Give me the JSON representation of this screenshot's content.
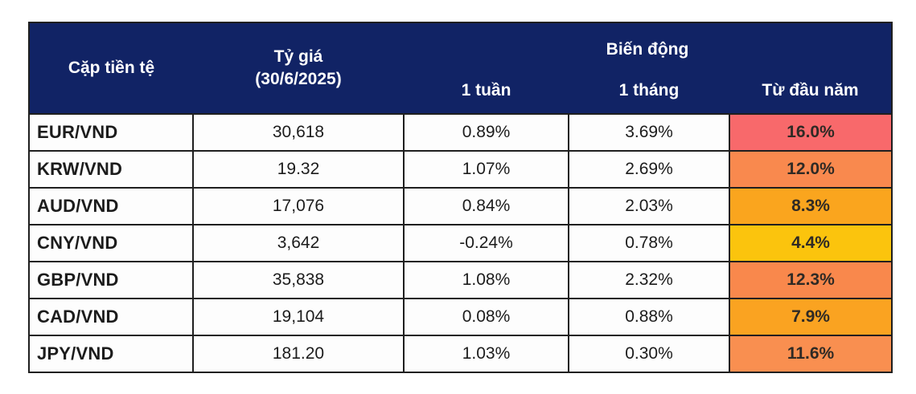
{
  "chart_data": {
    "type": "table",
    "columns": [
      "Cặp tiền tệ",
      "Tỷ giá (30/6/2025)",
      "1 tuần",
      "1 tháng",
      "Từ đầu năm"
    ],
    "column_groups": [
      {
        "label": "Biến động",
        "spans": [
          "1 tuần",
          "1 tháng",
          "Từ đầu năm"
        ]
      }
    ],
    "rows": [
      {
        "pair": "EUR/VND",
        "rate": 30618,
        "week_pct": 0.89,
        "month_pct": 3.69,
        "ytd_pct": 16.0
      },
      {
        "pair": "KRW/VND",
        "rate": 19.32,
        "week_pct": 1.07,
        "month_pct": 2.69,
        "ytd_pct": 12.0
      },
      {
        "pair": "AUD/VND",
        "rate": 17076,
        "week_pct": 0.84,
        "month_pct": 2.03,
        "ytd_pct": 8.3
      },
      {
        "pair": "CNY/VND",
        "rate": 3642,
        "week_pct": -0.24,
        "month_pct": 0.78,
        "ytd_pct": 4.4
      },
      {
        "pair": "GBP/VND",
        "rate": 35838,
        "week_pct": 1.08,
        "month_pct": 2.32,
        "ytd_pct": 12.3
      },
      {
        "pair": "CAD/VND",
        "rate": 19104,
        "week_pct": 0.08,
        "month_pct": 0.88,
        "ytd_pct": 7.9
      },
      {
        "pair": "JPY/VND",
        "rate": 181.2,
        "week_pct": 1.03,
        "month_pct": 0.3,
        "ytd_pct": 11.6
      }
    ],
    "conditional_formatting": "Từ đầu năm column uses a yellow(min)→orange→red(max) color scale"
  },
  "table": {
    "header": {
      "col_pair": "Cặp tiền tệ",
      "col_rate_line1": "Tỷ giá",
      "col_rate_line2": "(30/6/2025)",
      "col_change_group": "Biến động",
      "col_week": "1 tuần",
      "col_month": "1 tháng",
      "col_ytd": "Từ đầu năm"
    },
    "rows": [
      {
        "pair": "EUR/VND",
        "rate": "30,618",
        "week": "0.89%",
        "month": "3.69%",
        "ytd": "16.0%",
        "ytd_color": "#F8696B"
      },
      {
        "pair": "KRW/VND",
        "rate": "19.32",
        "week": "1.07%",
        "month": "2.69%",
        "ytd": "12.0%",
        "ytd_color": "#F9894E"
      },
      {
        "pair": "AUD/VND",
        "rate": "17,076",
        "week": "0.84%",
        "month": "2.03%",
        "ytd": "8.3%",
        "ytd_color": "#FAA51E"
      },
      {
        "pair": "CNY/VND",
        "rate": "3,642",
        "week": "-0.24%",
        "month": "0.78%",
        "ytd": "4.4%",
        "ytd_color": "#FBC40D"
      },
      {
        "pair": "GBP/VND",
        "rate": "35,838",
        "week": "1.08%",
        "month": "2.32%",
        "ytd": "12.3%",
        "ytd_color": "#F9884C"
      },
      {
        "pair": "CAD/VND",
        "rate": "19,104",
        "week": "0.08%",
        "month": "0.88%",
        "ytd": "7.9%",
        "ytd_color": "#FAA321"
      },
      {
        "pair": "JPY/VND",
        "rate": "181.20",
        "week": "1.03%",
        "month": "0.30%",
        "ytd": "11.6%",
        "ytd_color": "#F98F50"
      }
    ],
    "colors": {
      "header_bg": "#112365",
      "header_text": "#FFFFFF",
      "border": "#1F1F1F",
      "row_bg": "#FDFDFD"
    }
  }
}
